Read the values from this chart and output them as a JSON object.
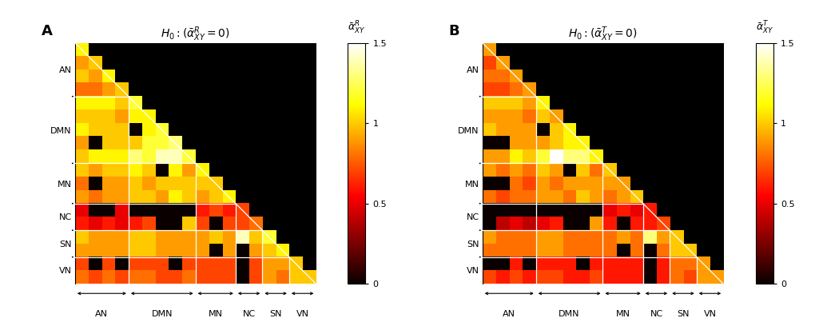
{
  "networks": [
    "AN",
    "DMN",
    "MN",
    "NC",
    "SN",
    "VN"
  ],
  "network_sizes": [
    4,
    5,
    3,
    2,
    2,
    2
  ],
  "n_total": 18,
  "vmin": 0.0,
  "vmax": 1.5,
  "title_A": "$H_0:(\\bar{\\alpha}^R_{XY}=0)$",
  "title_B": "$H_0:(\\bar{\\alpha}^T_{XY}=0)$",
  "cbar_label_A": "$\\bar{\\alpha}^R_{XY}$",
  "cbar_label_B": "$\\bar{\\alpha}^T_{XY}$",
  "label_A": "A",
  "label_B": "B",
  "cbar_ticks": [
    0.0,
    0.5,
    1.0,
    1.5
  ],
  "cbar_ticklabels": [
    "0",
    "0.5",
    "1",
    "1.5"
  ],
  "matrix_A": [
    [
      1.1,
      999,
      999,
      999,
      999,
      999,
      999,
      999,
      999,
      999,
      999,
      999,
      999,
      999,
      999,
      999,
      999,
      999
    ],
    [
      0.9,
      1.0,
      999,
      999,
      999,
      999,
      999,
      999,
      999,
      999,
      999,
      999,
      999,
      999,
      999,
      999,
      999,
      999
    ],
    [
      1.0,
      0.9,
      1.1,
      999,
      999,
      999,
      999,
      999,
      999,
      999,
      999,
      999,
      999,
      999,
      999,
      999,
      999,
      999
    ],
    [
      0.8,
      0.8,
      0.9,
      1.0,
      999,
      999,
      999,
      999,
      999,
      999,
      999,
      999,
      999,
      999,
      999,
      999,
      999,
      999
    ],
    [
      1.1,
      1.1,
      1.1,
      1.0,
      1.2,
      999,
      999,
      999,
      999,
      999,
      999,
      999,
      999,
      999,
      999,
      999,
      999,
      999
    ],
    [
      1.0,
      1.0,
      1.0,
      0.9,
      1.1,
      1.1,
      999,
      999,
      999,
      999,
      999,
      999,
      999,
      999,
      999,
      999,
      999,
      999
    ],
    [
      1.1,
      1.0,
      1.0,
      1.0,
      0.0,
      1.1,
      1.2,
      999,
      999,
      999,
      999,
      999,
      999,
      999,
      999,
      999,
      999,
      999
    ],
    [
      0.9,
      0.0,
      1.0,
      1.0,
      1.0,
      1.2,
      1.2,
      1.3,
      999,
      999,
      999,
      999,
      999,
      999,
      999,
      999,
      999,
      999
    ],
    [
      1.0,
      1.1,
      1.1,
      1.1,
      1.3,
      1.2,
      1.4,
      1.4,
      1.2,
      999,
      999,
      999,
      999,
      999,
      999,
      999,
      999,
      999
    ],
    [
      1.0,
      0.9,
      1.0,
      1.0,
      1.1,
      1.0,
      0.0,
      1.1,
      0.9,
      1.1,
      999,
      999,
      999,
      999,
      999,
      999,
      999,
      999
    ],
    [
      0.8,
      0.0,
      0.9,
      0.9,
      1.0,
      0.9,
      1.0,
      1.0,
      1.0,
      1.0,
      1.0,
      999,
      999,
      999,
      999,
      999,
      999,
      999
    ],
    [
      0.9,
      0.8,
      0.9,
      0.9,
      1.0,
      1.0,
      0.9,
      1.1,
      1.0,
      0.9,
      1.0,
      1.1,
      999,
      999,
      999,
      999,
      999,
      999
    ],
    [
      0.5,
      0.0,
      0.0,
      0.5,
      0.0,
      0.0,
      0.0,
      0.0,
      0.0,
      0.6,
      0.7,
      0.6,
      0.7,
      999,
      999,
      999,
      999,
      999
    ],
    [
      0.6,
      0.5,
      0.6,
      0.5,
      0.6,
      0.7,
      0.0,
      0.0,
      1.0,
      0.7,
      0.0,
      0.7,
      0.7,
      0.8,
      999,
      999,
      999,
      999
    ],
    [
      1.0,
      0.9,
      0.9,
      0.9,
      1.0,
      1.0,
      0.9,
      0.9,
      0.9,
      0.9,
      1.0,
      0.9,
      1.4,
      1.0,
      1.2,
      999,
      999,
      999
    ],
    [
      0.9,
      0.9,
      0.9,
      0.9,
      1.0,
      1.0,
      0.9,
      0.9,
      0.9,
      0.9,
      0.0,
      0.9,
      0.0,
      0.9,
      1.0,
      1.1,
      999,
      999
    ],
    [
      0.7,
      0.0,
      0.7,
      0.0,
      0.7,
      0.7,
      0.7,
      0.0,
      0.7,
      0.7,
      0.7,
      0.7,
      0.0,
      0.7,
      0.9,
      0.9,
      1.0,
      999
    ],
    [
      0.8,
      0.7,
      0.8,
      0.7,
      0.8,
      0.8,
      0.7,
      0.7,
      0.8,
      0.7,
      0.7,
      0.7,
      0.0,
      0.7,
      0.9,
      0.8,
      1.0,
      1.0
    ]
  ],
  "matrix_B": [
    [
      0.9,
      999,
      999,
      999,
      999,
      999,
      999,
      999,
      999,
      999,
      999,
      999,
      999,
      999,
      999,
      999,
      999,
      999
    ],
    [
      0.7,
      0.9,
      999,
      999,
      999,
      999,
      999,
      999,
      999,
      999,
      999,
      999,
      999,
      999,
      999,
      999,
      999,
      999
    ],
    [
      0.8,
      0.8,
      0.9,
      999,
      999,
      999,
      999,
      999,
      999,
      999,
      999,
      999,
      999,
      999,
      999,
      999,
      999,
      999
    ],
    [
      0.7,
      0.7,
      0.8,
      0.9,
      999,
      999,
      999,
      999,
      999,
      999,
      999,
      999,
      999,
      999,
      999,
      999,
      999,
      999
    ],
    [
      1.0,
      1.0,
      1.0,
      0.9,
      1.1,
      999,
      999,
      999,
      999,
      999,
      999,
      999,
      999,
      999,
      999,
      999,
      999,
      999
    ],
    [
      0.9,
      0.9,
      0.9,
      0.8,
      1.0,
      0.9,
      999,
      999,
      999,
      999,
      999,
      999,
      999,
      999,
      999,
      999,
      999,
      999
    ],
    [
      1.0,
      0.9,
      0.9,
      0.9,
      0.0,
      1.0,
      1.1,
      999,
      999,
      999,
      999,
      999,
      999,
      999,
      999,
      999,
      999,
      999
    ],
    [
      0.0,
      0.0,
      0.9,
      0.9,
      0.9,
      1.0,
      1.1,
      1.1,
      999,
      999,
      999,
      999,
      999,
      999,
      999,
      999,
      999,
      999
    ],
    [
      0.9,
      0.9,
      1.1,
      1.0,
      1.2,
      1.5,
      1.3,
      1.3,
      1.1,
      999,
      999,
      999,
      999,
      999,
      999,
      999,
      999,
      999
    ],
    [
      0.9,
      0.8,
      0.9,
      0.8,
      1.0,
      0.9,
      0.0,
      1.0,
      0.8,
      1.0,
      999,
      999,
      999,
      999,
      999,
      999,
      999,
      999
    ],
    [
      0.0,
      0.0,
      0.8,
      0.7,
      0.9,
      0.8,
      0.9,
      0.9,
      0.9,
      0.9,
      0.9,
      999,
      999,
      999,
      999,
      999,
      999,
      999
    ],
    [
      0.8,
      0.7,
      0.8,
      0.8,
      0.9,
      0.9,
      0.8,
      1.0,
      0.9,
      0.8,
      0.9,
      1.0,
      999,
      999,
      999,
      999,
      999,
      999
    ],
    [
      0.0,
      0.0,
      0.0,
      0.0,
      0.0,
      0.0,
      0.0,
      0.0,
      0.0,
      0.5,
      0.6,
      0.5,
      0.6,
      999,
      999,
      999,
      999,
      999
    ],
    [
      0.0,
      0.4,
      0.5,
      0.4,
      0.5,
      0.6,
      0.0,
      0.0,
      0.9,
      0.6,
      0.0,
      0.6,
      0.6,
      0.7,
      999,
      999,
      999,
      999
    ],
    [
      0.9,
      0.8,
      0.8,
      0.8,
      0.9,
      0.9,
      0.8,
      0.8,
      0.8,
      0.8,
      0.9,
      0.8,
      1.3,
      0.9,
      1.0,
      999,
      999,
      999
    ],
    [
      0.8,
      0.8,
      0.8,
      0.8,
      0.9,
      0.9,
      0.8,
      0.8,
      0.8,
      0.8,
      0.0,
      0.8,
      0.0,
      0.8,
      1.0,
      1.0,
      999,
      999
    ],
    [
      0.0,
      0.0,
      0.6,
      0.0,
      0.6,
      0.6,
      0.6,
      0.0,
      0.6,
      0.6,
      0.6,
      0.6,
      0.0,
      0.6,
      0.8,
      0.8,
      0.9,
      999
    ],
    [
      0.7,
      0.6,
      0.7,
      0.6,
      0.7,
      0.7,
      0.6,
      0.6,
      0.7,
      0.6,
      0.6,
      0.6,
      0.0,
      0.6,
      0.8,
      0.7,
      0.9,
      0.9
    ]
  ]
}
